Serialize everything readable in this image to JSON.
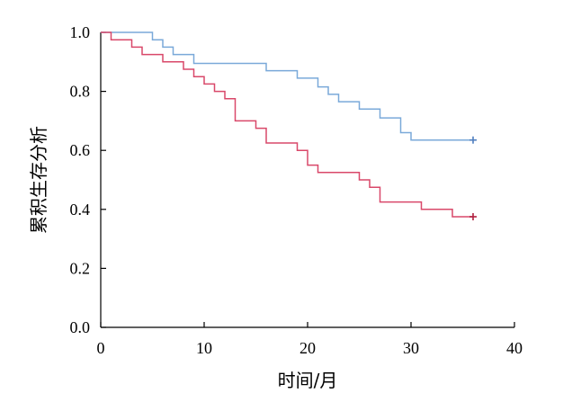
{
  "chart_data": {
    "type": "line",
    "title": "",
    "xlabel": "时间/月",
    "ylabel": "累积生存分析",
    "xlim": [
      0,
      40
    ],
    "ylim": [
      0.0,
      1.0
    ],
    "x_ticks": [
      "0",
      "10",
      "20",
      "30",
      "40"
    ],
    "y_ticks": [
      "0.0",
      "0.2",
      "0.4",
      "0.6",
      "0.8",
      "1.0"
    ],
    "grid": false,
    "legend": "none",
    "step": true,
    "series": [
      {
        "color": "#7aa9d9",
        "censor_color": "#4f7fbf",
        "points": [
          [
            0,
            1.0
          ],
          [
            5,
            0.975
          ],
          [
            6,
            0.95
          ],
          [
            7,
            0.925
          ],
          [
            9,
            0.895
          ],
          [
            16,
            0.87
          ],
          [
            19,
            0.845
          ],
          [
            21,
            0.815
          ],
          [
            22,
            0.79
          ],
          [
            23,
            0.765
          ],
          [
            25,
            0.74
          ],
          [
            27,
            0.71
          ],
          [
            29,
            0.66
          ],
          [
            30,
            0.635
          ],
          [
            36,
            0.635
          ]
        ],
        "censored": [
          [
            36,
            0.635
          ]
        ]
      },
      {
        "color": "#d9486a",
        "censor_color": "#b0203f",
        "points": [
          [
            0,
            1.0
          ],
          [
            1,
            0.975
          ],
          [
            3,
            0.95
          ],
          [
            4,
            0.925
          ],
          [
            6,
            0.9
          ],
          [
            8,
            0.875
          ],
          [
            9,
            0.85
          ],
          [
            10,
            0.825
          ],
          [
            11,
            0.8
          ],
          [
            12,
            0.775
          ],
          [
            13,
            0.7
          ],
          [
            15,
            0.675
          ],
          [
            16,
            0.625
          ],
          [
            19,
            0.6
          ],
          [
            20,
            0.55
          ],
          [
            21,
            0.525
          ],
          [
            25,
            0.5
          ],
          [
            26,
            0.475
          ],
          [
            27,
            0.425
          ],
          [
            31,
            0.4
          ],
          [
            34,
            0.375
          ],
          [
            36,
            0.375
          ]
        ],
        "censored": [
          [
            36,
            0.375
          ]
        ]
      }
    ]
  }
}
